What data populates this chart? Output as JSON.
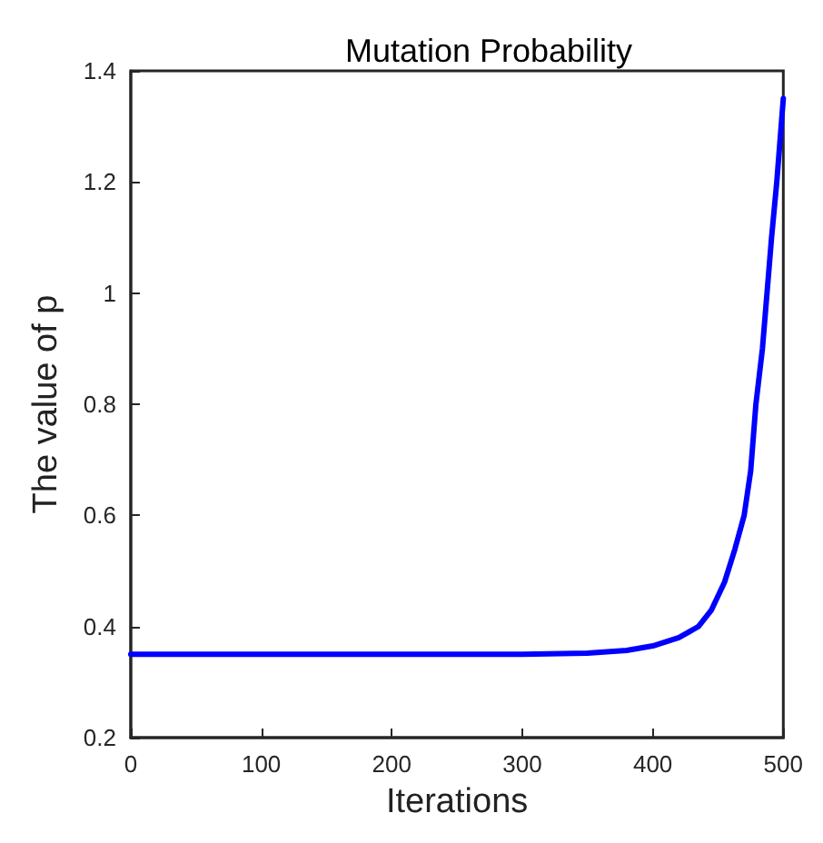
{
  "chart_data": {
    "type": "line",
    "title": "Mutation Probability",
    "xlabel": "Iterations",
    "ylabel": "The value of p",
    "x": [
      0,
      100,
      200,
      300,
      350,
      380,
      400,
      420,
      435,
      445,
      455,
      463,
      470,
      475,
      479,
      484,
      487.5,
      491,
      495,
      500
    ],
    "series": [
      {
        "color": "#0000ff",
        "values": [
          0.35,
          0.35,
          0.35,
          0.35,
          0.352,
          0.357,
          0.365,
          0.38,
          0.4,
          0.43,
          0.48,
          0.54,
          0.6,
          0.68,
          0.8,
          0.9,
          1.0,
          1.1,
          1.2,
          1.35
        ]
      }
    ],
    "xlim": [
      0,
      500
    ],
    "xticks": [
      0,
      100,
      200,
      300,
      400,
      500
    ],
    "ylim": [
      0.2,
      1.4
    ],
    "yticks": [
      0.2,
      0.4,
      0.6,
      0.8,
      1,
      1.2,
      1.4
    ],
    "grid": false,
    "marker": "none",
    "line_style": "solid"
  }
}
